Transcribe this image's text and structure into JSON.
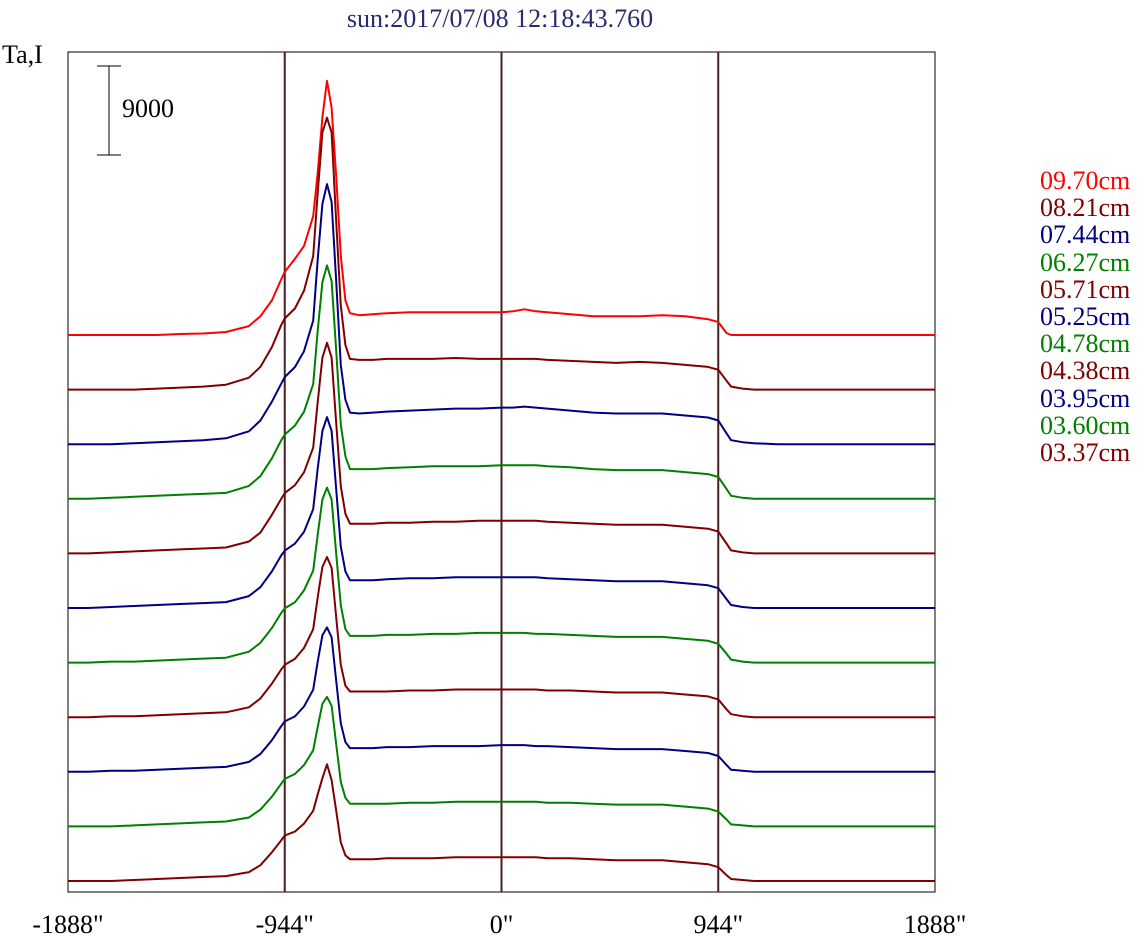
{
  "chart_data": {
    "type": "line",
    "title": "sun:2017/07/08 12:18:43.760",
    "ylabel": "Ta,I",
    "scale_bar_label": "9000",
    "x_ticks": [
      "-1888\"",
      "-944\"",
      "0\"",
      "944\"",
      "1888\""
    ],
    "x_tick_values": [
      -1888,
      -944,
      0,
      944,
      1888
    ],
    "xlim": [
      -1888,
      1888
    ],
    "vertical_reference_lines": [
      -944,
      0,
      944
    ],
    "x": [
      -1888,
      -1800,
      -1700,
      -1600,
      -1500,
      -1400,
      -1300,
      -1200,
      -1100,
      -1050,
      -1000,
      -960,
      -944,
      -900,
      -860,
      -820,
      -800,
      -780,
      -760,
      -740,
      -720,
      -700,
      -680,
      -660,
      -620,
      -560,
      -500,
      -400,
      -300,
      -200,
      -100,
      0,
      50,
      100,
      150,
      200,
      300,
      400,
      500,
      600,
      700,
      800,
      900,
      944,
      980,
      1000,
      1050,
      1100,
      1200,
      1300,
      1400,
      1500,
      1600,
      1700,
      1800,
      1888
    ],
    "series": [
      {
        "name": "09.70cm",
        "color": "#ff0000",
        "values": [
          0,
          0,
          0,
          0,
          0,
          100,
          150,
          300,
          900,
          1900,
          3500,
          5600,
          6400,
          7700,
          9000,
          12000,
          16500,
          22000,
          25700,
          23000,
          16000,
          8000,
          3500,
          2200,
          2000,
          2100,
          2200,
          2300,
          2300,
          2300,
          2300,
          2300,
          2400,
          2600,
          2400,
          2300,
          2100,
          1900,
          1900,
          1900,
          2000,
          1900,
          1600,
          1300,
          200,
          0,
          0,
          0,
          0,
          0,
          0,
          0,
          0,
          0,
          0,
          0
        ]
      },
      {
        "name": "08.21cm",
        "color": "#800000",
        "values": [
          0,
          0,
          0,
          0,
          100,
          200,
          300,
          500,
          1200,
          2300,
          4300,
          6500,
          7200,
          8200,
          10000,
          13500,
          20000,
          26000,
          27500,
          26000,
          17000,
          8500,
          4500,
          3100,
          3000,
          3000,
          3100,
          3100,
          3100,
          3200,
          3100,
          3100,
          3100,
          3100,
          3100,
          3000,
          2900,
          2800,
          2700,
          2800,
          2700,
          2500,
          2300,
          2000,
          900,
          300,
          100,
          0,
          0,
          0,
          0,
          0,
          0,
          0,
          0,
          0
        ]
      },
      {
        "name": "07.44cm",
        "color": "#000080",
        "values": [
          0,
          0,
          0,
          100,
          200,
          300,
          400,
          600,
          1300,
          2400,
          4300,
          6100,
          6800,
          7800,
          9400,
          12500,
          18800,
          24300,
          26300,
          24500,
          16500,
          8000,
          4500,
          3200,
          3100,
          3200,
          3300,
          3400,
          3500,
          3600,
          3600,
          3700,
          3700,
          3800,
          3700,
          3600,
          3400,
          3200,
          3100,
          3100,
          3100,
          2900,
          2700,
          2400,
          1100,
          400,
          200,
          100,
          0,
          0,
          0,
          0,
          0,
          0,
          0,
          0
        ]
      },
      {
        "name": "06.27cm",
        "color": "#008000",
        "values": [
          0,
          0,
          100,
          200,
          300,
          400,
          500,
          600,
          1300,
          2300,
          4100,
          5900,
          6500,
          7400,
          8800,
          11600,
          17100,
          21900,
          23600,
          22000,
          15000,
          7500,
          4300,
          3000,
          3000,
          3000,
          3100,
          3200,
          3300,
          3300,
          3300,
          3400,
          3400,
          3400,
          3400,
          3300,
          3200,
          3000,
          2900,
          2900,
          2900,
          2700,
          2500,
          2200,
          1000,
          300,
          100,
          0,
          0,
          0,
          0,
          0,
          0,
          0,
          0,
          0
        ]
      },
      {
        "name": "05.71cm",
        "color": "#800000",
        "values": [
          0,
          0,
          100,
          200,
          300,
          400,
          500,
          600,
          1200,
          2100,
          3900,
          5500,
          6100,
          6900,
          8200,
          10700,
          15400,
          19800,
          21300,
          19800,
          13200,
          6800,
          4000,
          3000,
          3000,
          3000,
          3100,
          3100,
          3200,
          3200,
          3300,
          3300,
          3300,
          3300,
          3300,
          3200,
          3100,
          3000,
          2900,
          2900,
          2900,
          2700,
          2500,
          2200,
          1000,
          300,
          100,
          0,
          0,
          0,
          0,
          0,
          0,
          0,
          0,
          0
        ]
      },
      {
        "name": "05.25cm",
        "color": "#000080",
        "values": [
          0,
          0,
          100,
          200,
          300,
          400,
          500,
          600,
          1200,
          2100,
          3700,
          5300,
          5800,
          6500,
          7700,
          10000,
          14200,
          17900,
          19300,
          17900,
          12000,
          6200,
          3700,
          2800,
          2800,
          2800,
          2900,
          3000,
          3000,
          3100,
          3100,
          3100,
          3100,
          3100,
          3100,
          3000,
          2900,
          2800,
          2700,
          2700,
          2700,
          2500,
          2300,
          2000,
          900,
          300,
          100,
          0,
          0,
          0,
          0,
          0,
          0,
          0,
          0,
          0
        ]
      },
      {
        "name": "04.78cm",
        "color": "#008000",
        "values": [
          0,
          0,
          100,
          100,
          200,
          300,
          400,
          500,
          1100,
          2000,
          3500,
          5000,
          5500,
          6100,
          7300,
          9300,
          13000,
          16500,
          17700,
          16500,
          11000,
          5800,
          3400,
          2700,
          2700,
          2700,
          2800,
          2800,
          2900,
          2900,
          3000,
          3000,
          3000,
          3000,
          2900,
          2900,
          2800,
          2700,
          2600,
          2600,
          2600,
          2400,
          2200,
          1900,
          900,
          300,
          100,
          0,
          0,
          0,
          0,
          0,
          0,
          0,
          0,
          0
        ]
      },
      {
        "name": "04.38cm",
        "color": "#800000",
        "values": [
          0,
          0,
          100,
          100,
          200,
          300,
          400,
          500,
          1000,
          1900,
          3400,
          4800,
          5300,
          5900,
          7000,
          8900,
          12200,
          15200,
          16200,
          15100,
          10100,
          5300,
          3200,
          2600,
          2600,
          2600,
          2600,
          2700,
          2700,
          2800,
          2800,
          2800,
          2800,
          2800,
          2800,
          2700,
          2700,
          2600,
          2500,
          2500,
          2500,
          2300,
          2100,
          1800,
          800,
          300,
          100,
          0,
          0,
          0,
          0,
          0,
          0,
          0,
          0,
          0
        ]
      },
      {
        "name": "03.95cm",
        "color": "#000080",
        "values": [
          0,
          0,
          100,
          100,
          200,
          300,
          400,
          500,
          1000,
          1800,
          3200,
          4600,
          5100,
          5600,
          6600,
          8300,
          11200,
          13800,
          14600,
          13600,
          9200,
          4900,
          3000,
          2400,
          2400,
          2400,
          2500,
          2500,
          2600,
          2600,
          2600,
          2700,
          2700,
          2700,
          2600,
          2600,
          2500,
          2400,
          2300,
          2300,
          2300,
          2100,
          1900,
          1600,
          700,
          200,
          100,
          0,
          0,
          0,
          0,
          0,
          0,
          0,
          0,
          0
        ]
      },
      {
        "name": "03.60cm",
        "color": "#008000",
        "values": [
          0,
          0,
          0,
          100,
          200,
          300,
          400,
          500,
          900,
          1700,
          3000,
          4300,
          4800,
          5300,
          6200,
          7700,
          10100,
          12400,
          13100,
          12200,
          8300,
          4500,
          2900,
          2300,
          2300,
          2300,
          2300,
          2400,
          2400,
          2500,
          2500,
          2500,
          2500,
          2500,
          2500,
          2400,
          2400,
          2300,
          2200,
          2200,
          2200,
          2000,
          1800,
          1500,
          700,
          200,
          100,
          0,
          0,
          0,
          0,
          0,
          0,
          0,
          0,
          0
        ]
      },
      {
        "name": "03.37cm",
        "color": "#800000",
        "values": [
          0,
          0,
          0,
          100,
          200,
          300,
          400,
          500,
          900,
          1600,
          2900,
          4100,
          4600,
          5000,
          5800,
          7100,
          8800,
          10400,
          11800,
          10200,
          7100,
          3900,
          2600,
          2200,
          2200,
          2200,
          2300,
          2300,
          2300,
          2400,
          2400,
          2400,
          2400,
          2400,
          2400,
          2300,
          2300,
          2200,
          2100,
          2100,
          2100,
          1900,
          1700,
          1400,
          600,
          200,
          100,
          0,
          0,
          0,
          0,
          0,
          0,
          0,
          0,
          0
        ]
      }
    ],
    "grid": false,
    "legend_placement": "right"
  }
}
